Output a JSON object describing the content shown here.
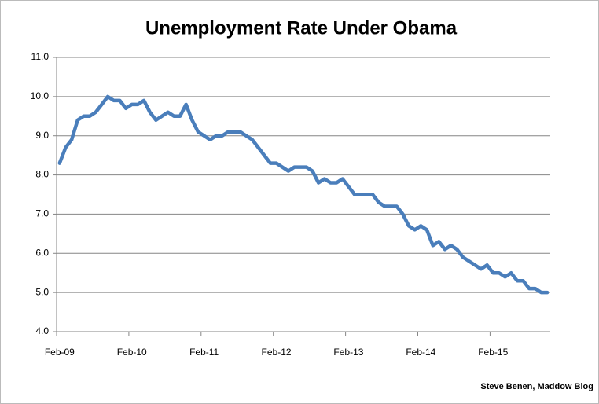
{
  "chart_data": {
    "type": "line",
    "title": "Unemployment Rate Under Obama",
    "credit": "Steve Benen, Maddow Blog",
    "categories": [
      "Feb-09",
      null,
      null,
      null,
      null,
      null,
      null,
      null,
      null,
      null,
      null,
      null,
      "Feb-10",
      null,
      null,
      null,
      null,
      null,
      null,
      null,
      null,
      null,
      null,
      null,
      "Feb-11",
      null,
      null,
      null,
      null,
      null,
      null,
      null,
      null,
      null,
      null,
      null,
      "Feb-12",
      null,
      null,
      null,
      null,
      null,
      null,
      null,
      null,
      null,
      null,
      null,
      "Feb-13",
      null,
      null,
      null,
      null,
      null,
      null,
      null,
      null,
      null,
      null,
      null,
      "Feb-14",
      null,
      null,
      null,
      null,
      null,
      null,
      null,
      null,
      null,
      null,
      null,
      "Feb-15",
      null,
      null,
      null,
      null,
      null,
      null,
      null,
      null,
      null
    ],
    "series": [
      {
        "color": "#4a7ebb",
        "values": [
          8.3,
          8.7,
          8.9,
          9.4,
          9.5,
          9.5,
          9.6,
          9.8,
          10.0,
          9.9,
          9.9,
          9.7,
          9.8,
          9.8,
          9.9,
          9.6,
          9.4,
          9.5,
          9.6,
          9.5,
          9.5,
          9.8,
          9.4,
          9.1,
          9.0,
          8.9,
          9.0,
          9.0,
          9.1,
          9.1,
          9.1,
          9.0,
          8.9,
          8.7,
          8.5,
          8.3,
          8.3,
          8.2,
          8.1,
          8.2,
          8.2,
          8.2,
          8.1,
          7.8,
          7.9,
          7.8,
          7.8,
          7.9,
          7.7,
          7.5,
          7.5,
          7.5,
          7.5,
          7.3,
          7.2,
          7.2,
          7.2,
          7.0,
          6.7,
          6.6,
          6.7,
          6.6,
          6.2,
          6.3,
          6.1,
          6.2,
          6.1,
          5.9,
          5.8,
          5.7,
          5.6,
          5.7,
          5.5,
          5.5,
          5.4,
          5.5,
          5.3,
          5.3,
          5.1,
          5.1,
          5.0,
          5.0
        ]
      }
    ],
    "ylim": [
      4,
      11
    ],
    "yticks": [
      {
        "value": 4,
        "label": "4.0"
      },
      {
        "value": 5,
        "label": "5.0"
      },
      {
        "value": 6,
        "label": "6.0"
      },
      {
        "value": 7,
        "label": "7.0"
      },
      {
        "value": 8,
        "label": "8.0"
      },
      {
        "value": 9,
        "label": "9.0"
      },
      {
        "value": 10,
        "label": "10.0"
      },
      {
        "value": 11,
        "label": "11.0"
      }
    ],
    "grid": true
  }
}
